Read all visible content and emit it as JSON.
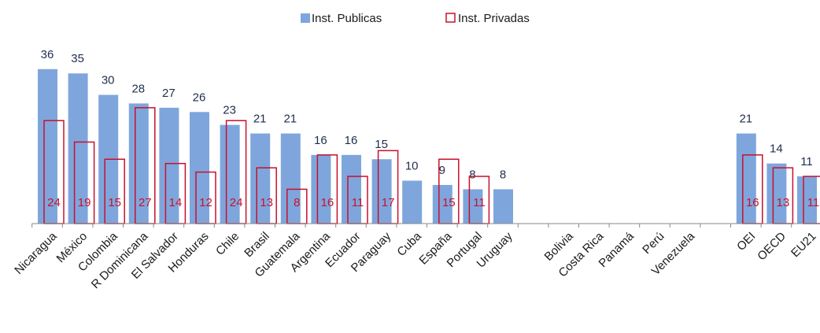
{
  "chart_data": {
    "type": "bar",
    "categories": [
      "Nicaragua",
      "México",
      "Colombia",
      "R Dominicana",
      "El Salvador",
      "Honduras",
      "Chile",
      "Brasil",
      "Guatemala",
      "Argentina",
      "Ecuador",
      "Paraguay",
      "Cuba",
      "España",
      "Portugal",
      "Uruguay",
      null,
      "Bolivia",
      "Costa Rica",
      "Panamá",
      "Perú",
      "Venezuela",
      null,
      "OEI",
      "OECD",
      "EU21"
    ],
    "series": [
      {
        "name": "Inst. Publicas",
        "color": "#7ea6dc",
        "values": [
          36,
          35,
          30,
          28,
          27,
          26,
          23,
          21,
          21,
          16,
          16,
          15,
          10,
          9,
          8,
          8,
          null,
          null,
          null,
          null,
          null,
          null,
          null,
          21,
          14,
          11
        ]
      },
      {
        "name": "Inst. Privadas",
        "color": "#c8102e",
        "values": [
          24,
          19,
          15,
          27,
          14,
          12,
          24,
          13,
          8,
          16,
          11,
          17,
          null,
          15,
          11,
          null,
          null,
          null,
          null,
          null,
          null,
          null,
          null,
          16,
          13,
          11
        ]
      }
    ],
    "ylim": [
      0,
      40
    ],
    "legend": "top"
  }
}
